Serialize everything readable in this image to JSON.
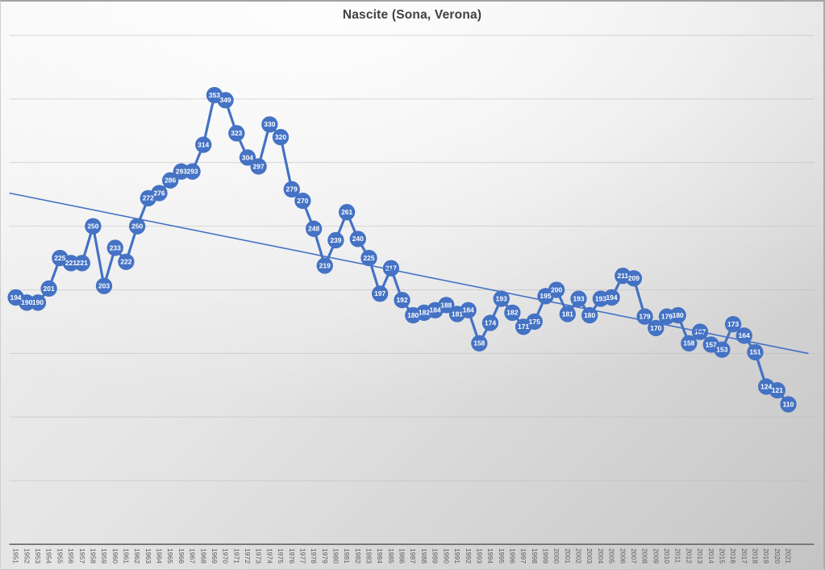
{
  "chart_title": "Nascite (Sona, Verona)",
  "chart_data": {
    "type": "line",
    "title": "Nascite (Sona, Verona)",
    "xlabel": "",
    "ylabel": "",
    "x": [
      1951,
      1952,
      1953,
      1954,
      1955,
      1956,
      1957,
      1958,
      1959,
      1960,
      1961,
      1962,
      1963,
      1964,
      1965,
      1966,
      1967,
      1968,
      1969,
      1970,
      1971,
      1972,
      1973,
      1974,
      1975,
      1976,
      1977,
      1978,
      1979,
      1980,
      1981,
      1982,
      1983,
      1984,
      1985,
      1986,
      1987,
      1988,
      1989,
      1990,
      1991,
      1992,
      1993,
      1994,
      1995,
      1996,
      1997,
      1998,
      1999,
      2000,
      2001,
      2002,
      2003,
      2004,
      2005,
      2006,
      2007,
      2008,
      2009,
      2010,
      2011,
      2012,
      2013,
      2014,
      2015,
      2016,
      2017,
      2018,
      2019,
      2020,
      2021
    ],
    "values": [
      194,
      190,
      190,
      201,
      225,
      221,
      221,
      250,
      203,
      233,
      222,
      250,
      272,
      276,
      286,
      293,
      293,
      314,
      353,
      349,
      323,
      304,
      297,
      330,
      320,
      279,
      270,
      248,
      219,
      239,
      261,
      240,
      225,
      197,
      217,
      192,
      180,
      182,
      184,
      188,
      181,
      184,
      158,
      174,
      193,
      182,
      171,
      175,
      195,
      200,
      181,
      193,
      180,
      193,
      194,
      211,
      209,
      179,
      170,
      179,
      180,
      158,
      167,
      157,
      153,
      173,
      164,
      151,
      124,
      121,
      110
    ],
    "ylim": [
      0,
      400
    ],
    "gridline_step": 50,
    "grid": true,
    "y_axis_tick_labels": "none",
    "legend": "none",
    "marker_labels_visible": true,
    "trendline": {
      "type": "linear",
      "start_value": 276,
      "end_value": 150
    },
    "colors": {
      "series": "#4472C4",
      "marker_label_text": "#FFFFFF",
      "axis_label": "#595959",
      "title": "#404040",
      "gridline": "#b9b9b9",
      "axis_line": "#6e6e6e"
    }
  }
}
